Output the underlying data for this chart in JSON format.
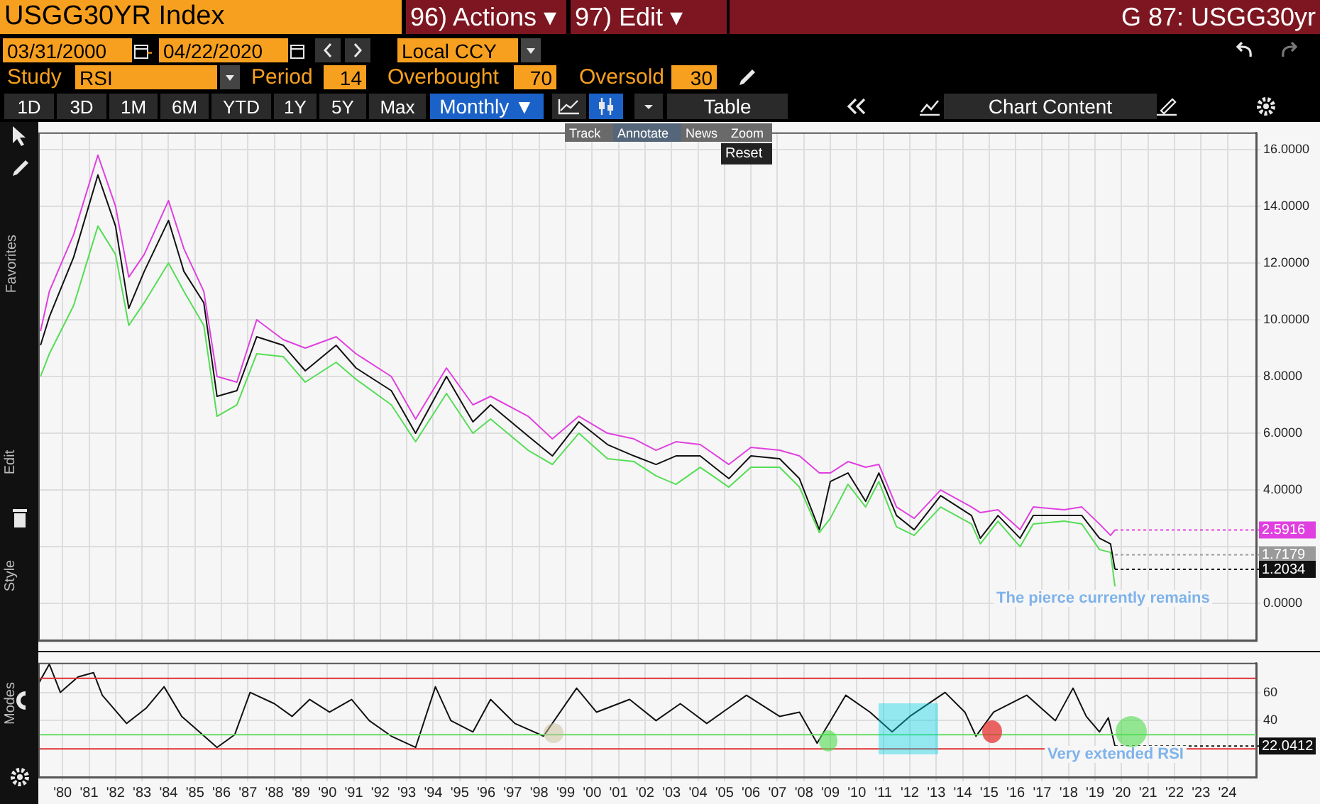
{
  "chart_data": [
    {
      "type": "other",
      "annotations": [
        "USGG30YR Index",
        "96) Actions ▾",
        "97) Edit ▾",
        "G 87: USGG30yr",
        "03/31/2000",
        "-",
        "04/22/2020",
        "Local CCY",
        "Study",
        "RSI",
        "Period",
        "14",
        "Overbought",
        "70",
        "Oversold",
        "30",
        "1D",
        "3D",
        "1M",
        "6M",
        "YTD",
        "1Y",
        "5Y",
        "Max",
        "Monthly ▼",
        "Table",
        "Chart Content",
        "Track",
        "Annotate",
        "News",
        "Zoom",
        "Reset",
        "Favorites",
        "Edit",
        "Style",
        "Modes"
      ]
    },
    {
      "type": "line",
      "x": [
        "1979-09",
        "1980-01",
        "1980-12",
        "1981-11",
        "1982-07",
        "1983-01",
        "1983-08",
        "1984-07",
        "1985-02",
        "1985-11",
        "1986-05",
        "1987-02",
        "1987-11",
        "1988-11",
        "1989-09",
        "1990-11",
        "1991-08",
        "1992-12",
        "1993-11",
        "1995-01",
        "1996-01",
        "1996-09",
        "1998-02",
        "1999-01",
        "2000-01",
        "2001-02",
        "2002-02",
        "2002-12",
        "2003-09",
        "2004-08",
        "2005-09",
        "2006-07",
        "2007-08",
        "2008-05",
        "2009-02",
        "2009-07",
        "2010-03",
        "2010-11",
        "2011-05",
        "2012-01",
        "2012-09",
        "2013-09",
        "2014-11",
        "2015-03",
        "2015-11",
        "2016-09",
        "2017-03",
        "2018-05",
        "2019-01",
        "2019-09",
        "2020-02",
        "2020-04"
      ],
      "series": [
        {
          "color": "#e040e0",
          "values": [
            9.6,
            11.0,
            13.0,
            15.8,
            14.0,
            11.5,
            12.3,
            14.2,
            12.5,
            11.0,
            8.0,
            7.8,
            10.0,
            9.3,
            9.0,
            9.4,
            8.8,
            8.0,
            6.5,
            8.3,
            7.0,
            7.3,
            6.6,
            5.8,
            6.6,
            6.0,
            5.8,
            5.4,
            5.7,
            5.6,
            4.9,
            5.5,
            5.4,
            5.2,
            4.6,
            4.6,
            5.0,
            4.8,
            4.9,
            3.4,
            3.0,
            4.0,
            3.4,
            3.2,
            3.3,
            2.6,
            3.4,
            3.3,
            3.4,
            2.8,
            2.4,
            2.5916
          ]
        },
        {
          "color": "#55dd55",
          "values": [
            8.0,
            8.8,
            10.5,
            13.3,
            12.3,
            9.8,
            10.6,
            12.0,
            11.0,
            9.8,
            6.6,
            7.0,
            8.8,
            8.7,
            7.8,
            8.5,
            7.9,
            7.0,
            5.7,
            7.4,
            6.0,
            6.5,
            5.4,
            4.9,
            6.0,
            5.1,
            5.0,
            4.5,
            4.2,
            4.8,
            4.1,
            4.8,
            4.8,
            4.1,
            2.5,
            3.0,
            4.2,
            3.4,
            4.3,
            2.7,
            2.4,
            3.4,
            2.8,
            2.1,
            2.9,
            2.0,
            2.8,
            2.9,
            2.8,
            1.9,
            1.8,
            0.6
          ]
        },
        {
          "color": "#111111",
          "values": [
            9.1,
            10.1,
            12.2,
            15.1,
            13.3,
            10.4,
            11.7,
            13.5,
            11.7,
            10.6,
            7.3,
            7.5,
            9.4,
            9.1,
            8.2,
            9.1,
            8.3,
            7.5,
            6.0,
            8.0,
            6.4,
            7.0,
            5.9,
            5.2,
            6.4,
            5.6,
            5.2,
            4.9,
            5.2,
            5.2,
            4.4,
            5.2,
            5.1,
            4.4,
            2.6,
            4.3,
            4.6,
            3.6,
            4.6,
            3.1,
            2.6,
            3.8,
            3.1,
            2.3,
            3.1,
            2.3,
            3.1,
            3.1,
            3.1,
            2.3,
            2.1,
            1.2034
          ]
        }
      ],
      "xlim": [
        "1979-08",
        "2025-08"
      ],
      "xticks": [
        {
          "value": "1980-07",
          "label": null
        },
        {
          "value": "1981-07",
          "label": null
        },
        {
          "value": "1982-07",
          "label": null
        },
        {
          "value": "1983-07",
          "label": null
        },
        {
          "value": "1984-07",
          "label": null
        },
        {
          "value": "1985-07",
          "label": null
        },
        {
          "value": "1986-07",
          "label": null
        },
        {
          "value": "1987-07",
          "label": null
        },
        {
          "value": "1988-07",
          "label": null
        },
        {
          "value": "1989-07",
          "label": null
        },
        {
          "value": "1990-07",
          "label": null
        },
        {
          "value": "1991-07",
          "label": null
        },
        {
          "value": "1992-07",
          "label": null
        },
        {
          "value": "1993-07",
          "label": null
        },
        {
          "value": "1994-07",
          "label": null
        },
        {
          "value": "1995-07",
          "label": null
        },
        {
          "value": "1996-07",
          "label": null
        },
        {
          "value": "1997-07",
          "label": null
        },
        {
          "value": "1998-07",
          "label": null
        },
        {
          "value": "1999-07",
          "label": null
        },
        {
          "value": "2000-07",
          "label": null
        },
        {
          "value": "2001-07",
          "label": null
        },
        {
          "value": "2002-07",
          "label": null
        },
        {
          "value": "2003-07",
          "label": null
        },
        {
          "value": "2004-07",
          "label": null
        },
        {
          "value": "2005-07",
          "label": null
        },
        {
          "value": "2006-07",
          "label": null
        },
        {
          "value": "2007-07",
          "label": null
        },
        {
          "value": "2008-07",
          "label": null
        },
        {
          "value": "2009-07",
          "label": null
        },
        {
          "value": "2010-07",
          "label": null
        },
        {
          "value": "2011-07",
          "label": null
        },
        {
          "value": "2012-07",
          "label": null
        },
        {
          "value": "2013-07",
          "label": null
        },
        {
          "value": "2014-07",
          "label": null
        },
        {
          "value": "2015-07",
          "label": null
        },
        {
          "value": "2016-07",
          "label": null
        },
        {
          "value": "2017-07",
          "label": null
        },
        {
          "value": "2018-07",
          "label": null
        },
        {
          "value": "2019-07",
          "label": null
        },
        {
          "value": "2020-07",
          "label": null
        },
        {
          "value": "2021-07",
          "label": null
        },
        {
          "value": "2022-07",
          "label": null
        },
        {
          "value": "2023-07",
          "label": null
        },
        {
          "value": "2024-07",
          "label": null
        }
      ],
      "ylim": [
        -1.3,
        16.6
      ],
      "yticks": [
        {
          "value": 0,
          "label": "0.0000"
        },
        {
          "value": 2,
          "label": null
        },
        {
          "value": 4,
          "label": "4.0000"
        },
        {
          "value": 6,
          "label": "6.0000"
        },
        {
          "value": 8,
          "label": "8.0000"
        },
        {
          "value": 10,
          "label": "10.0000"
        },
        {
          "value": 12,
          "label": "12.0000"
        },
        {
          "value": 14,
          "label": "14.0000"
        },
        {
          "value": 16,
          "label": "16.0000"
        }
      ],
      "tick_labels": "y",
      "grid": true,
      "annotations": [
        "The pierce currently remains",
        {
          "text": "2.5916",
          "x": "2020-04",
          "y": 2.5916
        },
        {
          "text": "1.7179",
          "x": "2020-04",
          "y": 1.7179
        },
        {
          "text": "1.2034",
          "x": "2020-04",
          "y": 1.2034
        }
      ]
    },
    {
      "type": "line",
      "x": [
        "1979-08",
        "1980-01",
        "1980-06",
        "1981-02",
        "1981-09",
        "1982-01",
        "1982-12",
        "1983-09",
        "1984-05",
        "1985-01",
        "1985-09",
        "1986-05",
        "1987-01",
        "1987-08",
        "1988-07",
        "1989-03",
        "1989-11",
        "1990-08",
        "1991-06",
        "1992-02",
        "1992-12",
        "1993-11",
        "1994-08",
        "1995-03",
        "1996-01",
        "1996-09",
        "1997-08",
        "1998-09",
        "1999-12",
        "2000-09",
        "2001-12",
        "2002-12",
        "2003-11",
        "2004-11",
        "2006-05",
        "2007-08",
        "2008-05",
        "2009-01",
        "2010-02",
        "2011-01",
        "2011-11",
        "2012-07",
        "2013-11",
        "2014-08",
        "2015-01",
        "2015-09",
        "2016-12",
        "2018-01",
        "2018-09",
        "2019-03",
        "2019-09",
        "2020-01",
        "2020-04"
      ],
      "series": [
        {
          "color": "#111111",
          "values": [
            66,
            80,
            60,
            71,
            74,
            58,
            38,
            49,
            64,
            43,
            32,
            21,
            30,
            60,
            52,
            43,
            55,
            46,
            55,
            40,
            29,
            21,
            64,
            40,
            32,
            55,
            38,
            29,
            63,
            46,
            55,
            40,
            52,
            38,
            58,
            43,
            46,
            24,
            58,
            46,
            32,
            43,
            60,
            46,
            29,
            46,
            58,
            40,
            63,
            43,
            32,
            42,
            22.0412
          ]
        }
      ],
      "xlim": [
        "1979-08",
        "2025-08"
      ],
      "xticks": [
        {
          "value": "1980-07",
          "label": "'80"
        },
        {
          "value": "1981-07",
          "label": "'81"
        },
        {
          "value": "1982-07",
          "label": "'82"
        },
        {
          "value": "1983-07",
          "label": "'83"
        },
        {
          "value": "1984-07",
          "label": "'84"
        },
        {
          "value": "1985-07",
          "label": "'85"
        },
        {
          "value": "1986-07",
          "label": "'86"
        },
        {
          "value": "1987-07",
          "label": "'87"
        },
        {
          "value": "1988-07",
          "label": "'88"
        },
        {
          "value": "1989-07",
          "label": "'89"
        },
        {
          "value": "1990-07",
          "label": "'90"
        },
        {
          "value": "1991-07",
          "label": "'91"
        },
        {
          "value": "1992-07",
          "label": "'92"
        },
        {
          "value": "1993-07",
          "label": "'93"
        },
        {
          "value": "1994-07",
          "label": "'94"
        },
        {
          "value": "1995-07",
          "label": "'95"
        },
        {
          "value": "1996-07",
          "label": "'96"
        },
        {
          "value": "1997-07",
          "label": "'97"
        },
        {
          "value": "1998-07",
          "label": "'98"
        },
        {
          "value": "1999-07",
          "label": "'99"
        },
        {
          "value": "2000-07",
          "label": "'00"
        },
        {
          "value": "2001-07",
          "label": "'01"
        },
        {
          "value": "2002-07",
          "label": "'02"
        },
        {
          "value": "2003-07",
          "label": "'03"
        },
        {
          "value": "2004-07",
          "label": "'04"
        },
        {
          "value": "2005-07",
          "label": "'05"
        },
        {
          "value": "2006-07",
          "label": "'06"
        },
        {
          "value": "2007-07",
          "label": "'07"
        },
        {
          "value": "2008-07",
          "label": "'08"
        },
        {
          "value": "2009-07",
          "label": "'09"
        },
        {
          "value": "2010-07",
          "label": "'10"
        },
        {
          "value": "2011-07",
          "label": "'11"
        },
        {
          "value": "2012-07",
          "label": "'12"
        },
        {
          "value": "2013-07",
          "label": "'13"
        },
        {
          "value": "2014-07",
          "label": "'14"
        },
        {
          "value": "2015-07",
          "label": "'15"
        },
        {
          "value": "2016-07",
          "label": "'16"
        },
        {
          "value": "2017-07",
          "label": "'17"
        },
        {
          "value": "2018-07",
          "label": "'18"
        },
        {
          "value": "2019-07",
          "label": "'19"
        },
        {
          "value": "2020-07",
          "label": "'20"
        },
        {
          "value": "2021-07",
          "label": "'21"
        },
        {
          "value": "2022-07",
          "label": "'22"
        },
        {
          "value": "2023-07",
          "label": "'23"
        },
        {
          "value": "2024-07",
          "label": "'24"
        }
      ],
      "ylim": [
        0,
        81
      ],
      "yticks": [
        40,
        60
      ],
      "grid": true,
      "ref_lines": [
        {
          "axis": "y",
          "value": 70,
          "color": "#e03030"
        },
        {
          "axis": "y",
          "value": 30,
          "color": "#66dd66"
        },
        {
          "axis": "y",
          "value": 20,
          "color": "#e03030"
        }
      ],
      "annotations": [
        "Very extended RSI",
        {
          "text": "22.0412",
          "x": "2020-04",
          "y": 22.0412
        }
      ]
    }
  ]
}
